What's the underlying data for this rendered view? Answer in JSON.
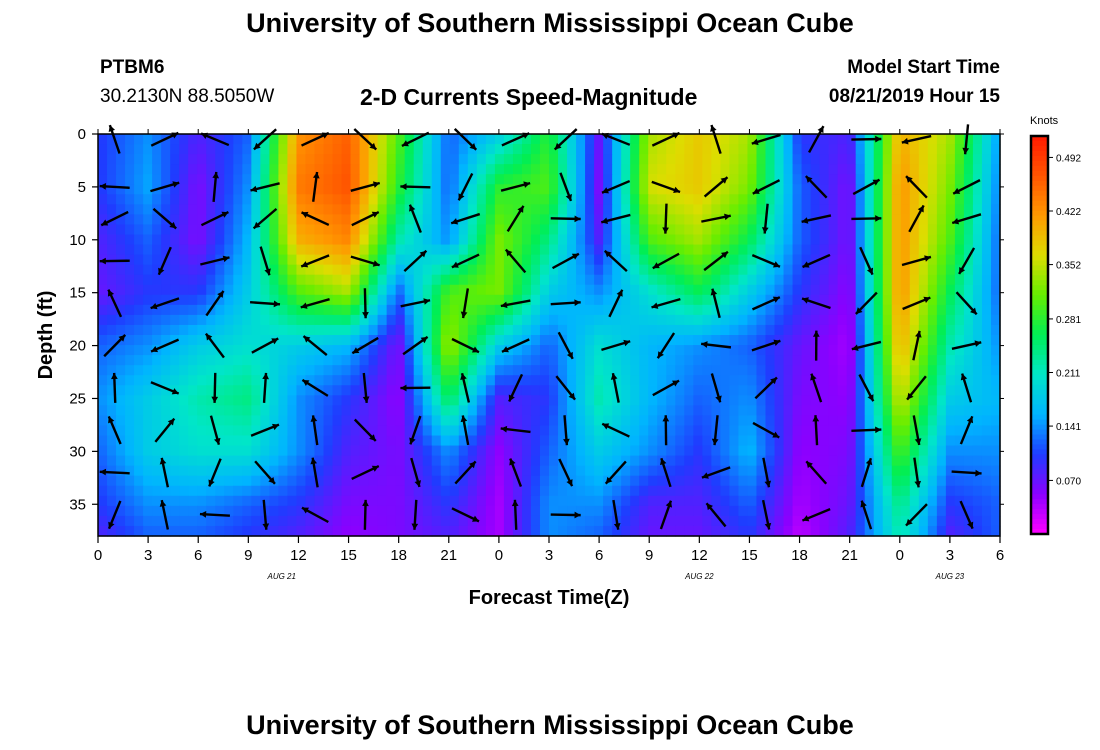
{
  "header": {
    "title": "University of Southern Mississippi Ocean Cube",
    "station": "PTBM6",
    "coords": "30.2130N 88.5050W",
    "subtitle": "2-D Currents Speed-Magnitude",
    "start_label": "Model Start Time",
    "start_value": "08/21/2019 Hour 15"
  },
  "footer": {
    "title": "University of Southern Mississippi Ocean Cube"
  },
  "colorbar": {
    "unit": "Knots",
    "ticks": [
      "0.492",
      "0.422",
      "0.352",
      "0.281",
      "0.211",
      "0.141",
      "0.070"
    ],
    "colors": [
      "#ff00ff",
      "#8b00ff",
      "#1f3cff",
      "#00b4ff",
      "#00e6c8",
      "#00ee55",
      "#66ee00",
      "#dddd00",
      "#ff9900",
      "#ff5500",
      "#ff1a00"
    ]
  },
  "chart_data": {
    "type": "heatmap",
    "title": "2-D Currents Speed-Magnitude",
    "xlabel": "Forecast Time(Z)",
    "ylabel": "Depth (ft)",
    "x_ticks": [
      "0",
      "3",
      "6",
      "9",
      "12",
      "15",
      "18",
      "21",
      "0",
      "3",
      "6",
      "9",
      "12",
      "15",
      "18",
      "21",
      "0",
      "3",
      "6"
    ],
    "x_range_hours": [
      0,
      54
    ],
    "y_ticks": [
      0,
      5,
      10,
      15,
      20,
      25,
      30,
      35
    ],
    "ylim": [
      0,
      38
    ],
    "date_labels": [
      {
        "text": "AUG 21",
        "at_hour": 11
      },
      {
        "text": "AUG 22",
        "at_hour": 36
      },
      {
        "text": "AUG 23",
        "at_hour": 51
      }
    ],
    "colorbar_range": [
      0.0,
      0.52
    ],
    "speed_grid": {
      "hours": [
        0,
        3,
        6,
        9,
        12,
        15,
        18,
        21,
        24,
        27,
        30,
        33,
        36,
        39,
        42,
        45,
        48,
        51,
        54
      ],
      "depths": [
        0,
        5,
        10,
        15,
        20,
        25,
        30,
        35,
        38
      ],
      "values": [
        [
          0.1,
          0.14,
          0.08,
          0.12,
          0.42,
          0.46,
          0.3,
          0.12,
          0.18,
          0.28,
          0.07,
          0.34,
          0.38,
          0.34,
          0.1,
          0.08,
          0.4,
          0.34,
          0.14
        ],
        [
          0.1,
          0.15,
          0.06,
          0.14,
          0.44,
          0.47,
          0.28,
          0.12,
          0.28,
          0.3,
          0.06,
          0.36,
          0.38,
          0.32,
          0.12,
          0.06,
          0.42,
          0.32,
          0.13
        ],
        [
          0.08,
          0.12,
          0.06,
          0.16,
          0.4,
          0.43,
          0.22,
          0.14,
          0.32,
          0.24,
          0.08,
          0.3,
          0.34,
          0.26,
          0.12,
          0.06,
          0.42,
          0.3,
          0.12
        ],
        [
          0.07,
          0.1,
          0.1,
          0.18,
          0.3,
          0.34,
          0.12,
          0.3,
          0.32,
          0.18,
          0.14,
          0.2,
          0.26,
          0.18,
          0.1,
          0.05,
          0.42,
          0.26,
          0.12
        ],
        [
          0.12,
          0.14,
          0.18,
          0.2,
          0.18,
          0.16,
          0.06,
          0.34,
          0.18,
          0.12,
          0.2,
          0.16,
          0.14,
          0.12,
          0.07,
          0.04,
          0.4,
          0.22,
          0.14
        ],
        [
          0.14,
          0.18,
          0.22,
          0.24,
          0.14,
          0.1,
          0.05,
          0.26,
          0.08,
          0.1,
          0.22,
          0.16,
          0.12,
          0.14,
          0.06,
          0.05,
          0.36,
          0.18,
          0.16
        ],
        [
          0.12,
          0.18,
          0.2,
          0.2,
          0.14,
          0.08,
          0.06,
          0.14,
          0.05,
          0.12,
          0.18,
          0.14,
          0.1,
          0.16,
          0.05,
          0.06,
          0.3,
          0.14,
          0.14
        ],
        [
          0.1,
          0.14,
          0.14,
          0.12,
          0.1,
          0.06,
          0.06,
          0.1,
          0.04,
          0.14,
          0.14,
          0.08,
          0.08,
          0.12,
          0.04,
          0.07,
          0.24,
          0.1,
          0.12
        ],
        [
          0.08,
          0.12,
          0.12,
          0.1,
          0.08,
          0.05,
          0.06,
          0.08,
          0.04,
          0.14,
          0.12,
          0.07,
          0.07,
          0.1,
          0.03,
          0.08,
          0.22,
          0.08,
          0.12
        ]
      ]
    }
  }
}
